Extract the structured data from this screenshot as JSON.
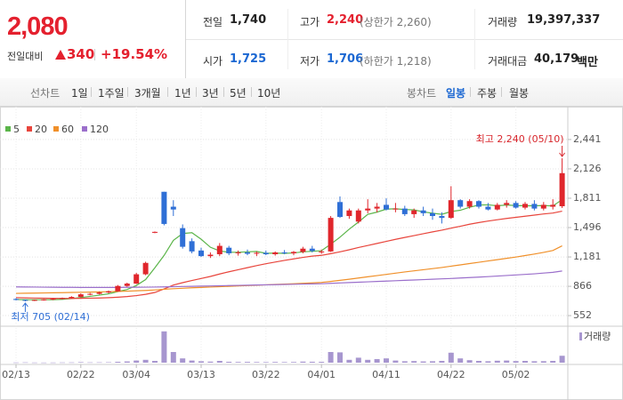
{
  "quote": {
    "price": "2,080",
    "change_label": "전일대비",
    "change": "340",
    "change_rate": "+19.54%",
    "items": [
      {
        "label": "전일",
        "value": "1,740"
      },
      {
        "label": "고가",
        "value": "2,240",
        "note": "(상한가 2,260)"
      },
      {
        "label": "거래량",
        "value": "19,397,337"
      },
      {
        "label": "시가",
        "value": "1,725"
      },
      {
        "label": "저가",
        "value": "1,706",
        "note": "(하한가 1,218)"
      },
      {
        "label": "거래대금",
        "value": "40,179",
        "unit": "백만"
      }
    ]
  },
  "nav": {
    "line_chart": "선차트",
    "line_periods": [
      "1일",
      "1주일",
      "3개월",
      "1년",
      "3년",
      "5년",
      "10년"
    ],
    "candle_chart": "봉차트",
    "candle_periods": [
      "일봉",
      "주봉",
      "월봉"
    ]
  },
  "chart_data": {
    "type": "candlestick",
    "categories": [
      "02/13",
      null,
      null,
      null,
      null,
      null,
      null,
      "02/22",
      null,
      null,
      null,
      null,
      null,
      "03/04",
      null,
      null,
      null,
      null,
      null,
      null,
      "03/13",
      null,
      null,
      null,
      null,
      null,
      null,
      "03/22",
      null,
      null,
      null,
      null,
      null,
      "04/01",
      null,
      null,
      null,
      null,
      null,
      null,
      "04/11",
      null,
      null,
      null,
      null,
      null,
      null,
      "04/22",
      null,
      null,
      null,
      null,
      null,
      null,
      "05/02",
      null,
      null,
      null,
      null,
      null
    ],
    "open": [
      730,
      720,
      712,
      720,
      725,
      732,
      740,
      752,
      780,
      785,
      800,
      812,
      870,
      895,
      995,
      1440,
      1880,
      1720,
      1490,
      1350,
      1250,
      1190,
      1210,
      1280,
      1220,
      1230,
      1215,
      1225,
      1210,
      1230,
      1220,
      1235,
      1270,
      1230,
      1240,
      1770,
      1620,
      1560,
      1680,
      1700,
      1740,
      1690,
      1700,
      1640,
      1680,
      1650,
      1620,
      1600,
      1790,
      1720,
      1780,
      1720,
      1690,
      1740,
      1760,
      1710,
      1750,
      1700,
      1720,
      1725
    ],
    "high": [
      740,
      725,
      725,
      730,
      740,
      745,
      760,
      790,
      795,
      810,
      820,
      880,
      905,
      1010,
      1130,
      1455,
      1880,
      1790,
      1530,
      1380,
      1280,
      1230,
      1330,
      1300,
      1250,
      1260,
      1240,
      1250,
      1240,
      1255,
      1245,
      1290,
      1300,
      1260,
      1620,
      1830,
      1700,
      1700,
      1800,
      1760,
      1810,
      1760,
      1730,
      1700,
      1720,
      1700,
      1660,
      1940,
      1800,
      1800,
      1790,
      1760,
      1760,
      1790,
      1780,
      1770,
      1790,
      1770,
      1800,
      2240
    ],
    "low": [
      715,
      705,
      708,
      712,
      718,
      725,
      735,
      748,
      770,
      778,
      790,
      808,
      860,
      890,
      985,
      1435,
      1520,
      1620,
      1270,
      1220,
      1180,
      1170,
      1190,
      1200,
      1195,
      1200,
      1190,
      1200,
      1195,
      1210,
      1200,
      1220,
      1230,
      1215,
      1235,
      1600,
      1590,
      1540,
      1650,
      1660,
      1680,
      1660,
      1620,
      1600,
      1620,
      1580,
      1540,
      1590,
      1700,
      1700,
      1700,
      1680,
      1680,
      1710,
      1700,
      1690,
      1680,
      1680,
      1690,
      1706
    ],
    "close": [
      720,
      712,
      720,
      725,
      732,
      740,
      752,
      780,
      785,
      800,
      812,
      870,
      895,
      995,
      1117,
      1450,
      1535,
      1690,
      1290,
      1240,
      1190,
      1205,
      1300,
      1220,
      1230,
      1215,
      1225,
      1210,
      1230,
      1220,
      1235,
      1270,
      1245,
      1240,
      1600,
      1610,
      1680,
      1680,
      1700,
      1720,
      1690,
      1700,
      1640,
      1680,
      1650,
      1620,
      1600,
      1790,
      1720,
      1780,
      1720,
      1690,
      1740,
      1760,
      1710,
      1750,
      1700,
      1740,
      1740,
      2080
    ],
    "up_color": "#e0262c",
    "down_color": "#2f6fd6",
    "series": [
      {
        "name": "5",
        "color": "#5bb54a",
        "values": [
          725,
          722,
          722,
          722,
          722,
          726,
          734,
          746,
          758,
          771,
          786,
          809,
          832,
          875,
          938,
          1065,
          1198,
          1359,
          1432,
          1441,
          1371,
          1285,
          1245,
          1231,
          1231,
          1236,
          1240,
          1220,
          1222,
          1220,
          1224,
          1236,
          1242,
          1248,
          1318,
          1393,
          1479,
          1556,
          1638,
          1662,
          1694,
          1698,
          1690,
          1686,
          1665,
          1650,
          1638,
          1668,
          1682,
          1714,
          1738,
          1740,
          1730,
          1738,
          1732,
          1730,
          1730,
          1732,
          1728,
          1796
        ]
      },
      {
        "name": "20",
        "color": "#e8453c",
        "values": [
          745,
          742,
          740,
          738,
          737,
          736,
          736,
          737,
          739,
          741,
          744,
          749,
          756,
          766,
          780,
          800,
          838,
          880,
          905,
          928,
          950,
          972,
          998,
          1022,
          1044,
          1066,
          1088,
          1108,
          1126,
          1144,
          1160,
          1176,
          1190,
          1198,
          1216,
          1236,
          1258,
          1282,
          1304,
          1326,
          1348,
          1370,
          1390,
          1410,
          1430,
          1450,
          1468,
          1490,
          1510,
          1532,
          1550,
          1566,
          1580,
          1594,
          1606,
          1618,
          1630,
          1642,
          1652,
          1672
        ]
      },
      {
        "name": "60",
        "color": "#f0902a",
        "values": [
          790,
          792,
          793,
          795,
          797,
          798,
          800,
          802,
          804,
          806,
          808,
          811,
          814,
          818,
          822,
          827,
          834,
          840,
          845,
          850,
          854,
          858,
          862,
          866,
          870,
          874,
          878,
          882,
          886,
          890,
          894,
          898,
          903,
          908,
          918,
          930,
          942,
          955,
          968,
          981,
          994,
          1007,
          1020,
          1032,
          1044,
          1056,
          1068,
          1082,
          1096,
          1110,
          1124,
          1138,
          1152,
          1166,
          1180,
          1196,
          1212,
          1230,
          1250,
          1300
        ]
      },
      {
        "name": "120",
        "color": "#9b6fcb",
        "values": [
          860,
          859,
          858,
          857,
          856,
          855,
          855,
          854,
          854,
          854,
          854,
          854,
          855,
          856,
          857,
          858,
          860,
          862,
          864,
          866,
          868,
          870,
          872,
          874,
          876,
          878,
          880,
          882,
          884,
          886,
          888,
          890,
          892,
          894,
          898,
          902,
          906,
          910,
          914,
          918,
          922,
          926,
          930,
          934,
          938,
          942,
          946,
          950,
          955,
          960,
          965,
          970,
          976,
          982,
          988,
          994,
          1000,
          1008,
          1016,
          1030
        ]
      }
    ],
    "volume": {
      "name": "거래량",
      "color": "#a796cf",
      "values": [
        600000,
        900000,
        500000,
        400000,
        500000,
        700000,
        800000,
        1500000,
        900000,
        1000000,
        1200000,
        2500000,
        3500000,
        6000000,
        8000000,
        5000000,
        88000000,
        30000000,
        12000000,
        6000000,
        4000000,
        3000000,
        5000000,
        2500000,
        2000000,
        2200000,
        1800000,
        1600000,
        2000000,
        1700000,
        1900000,
        3000000,
        2600000,
        2400000,
        30000000,
        29000000,
        8000000,
        14000000,
        8000000,
        10000000,
        12000000,
        6000000,
        4000000,
        4500000,
        3500000,
        4000000,
        5000000,
        28000000,
        12000000,
        7000000,
        5000000,
        4000000,
        5500000,
        6000000,
        4500000,
        5000000,
        4000000,
        4200000,
        5000000,
        19397337
      ]
    },
    "volume_ylim": [
      0,
      100000000
    ],
    "ylim": [
      457,
      2526
    ],
    "yticks": [
      {
        "value": 2441,
        "label": "2,441"
      },
      {
        "value": 2126,
        "label": "2,126"
      },
      {
        "value": 1811,
        "label": "1,811"
      },
      {
        "value": 1496,
        "label": "1,496"
      },
      {
        "value": 1181,
        "label": "1,181"
      },
      866,
      552
    ],
    "grid": true,
    "annotations": {
      "high": "최고 2,240 (05/10)",
      "low": "최저 705 (02/14)"
    }
  }
}
